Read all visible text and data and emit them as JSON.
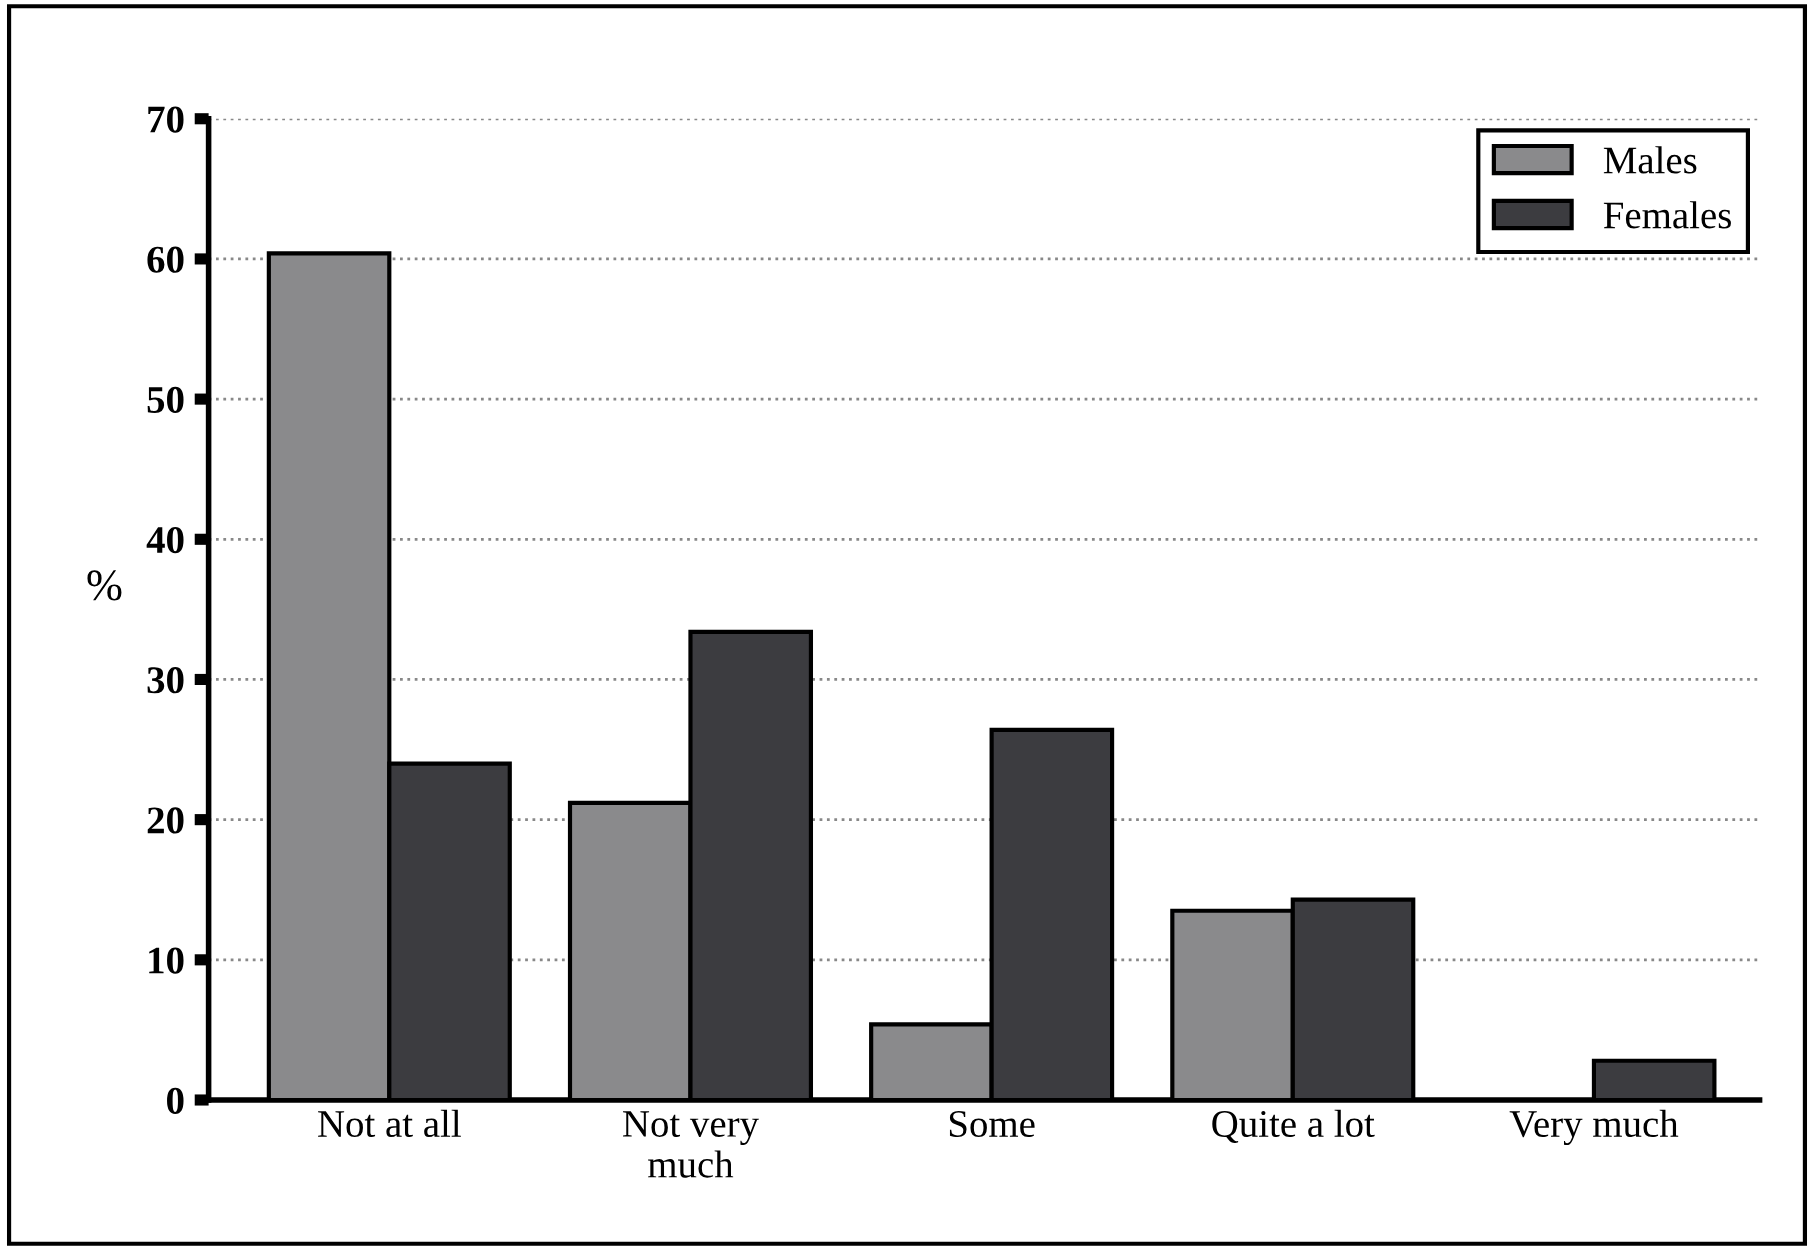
{
  "chart_data": {
    "type": "bar",
    "ylabel": "%",
    "categories": [
      "Not at all",
      "Not very\nmuch",
      "Some",
      "Quite a lot",
      "Very much"
    ],
    "series": [
      {
        "name": "Males",
        "color": "#8a8a8c",
        "values": [
          60.4,
          21.2,
          5.4,
          13.5,
          0
        ]
      },
      {
        "name": "Females",
        "color": "#3c3c40",
        "values": [
          24.0,
          33.4,
          26.4,
          14.3,
          2.8
        ]
      }
    ],
    "ylim": [
      0,
      70
    ],
    "yticks": [
      0,
      10,
      20,
      30,
      40,
      50,
      60,
      70
    ],
    "grid": "y",
    "legend": "top right"
  }
}
